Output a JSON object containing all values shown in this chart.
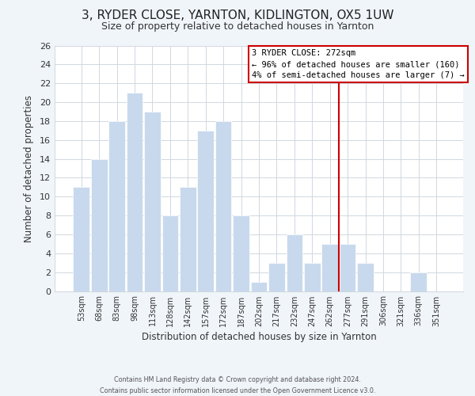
{
  "title": "3, RYDER CLOSE, YARNTON, KIDLINGTON, OX5 1UW",
  "subtitle": "Size of property relative to detached houses in Yarnton",
  "xlabel": "Distribution of detached houses by size in Yarnton",
  "ylabel": "Number of detached properties",
  "footer_line1": "Contains HM Land Registry data © Crown copyright and database right 2024.",
  "footer_line2": "Contains public sector information licensed under the Open Government Licence v3.0.",
  "categories": [
    "53sqm",
    "68sqm",
    "83sqm",
    "98sqm",
    "113sqm",
    "128sqm",
    "142sqm",
    "157sqm",
    "172sqm",
    "187sqm",
    "202sqm",
    "217sqm",
    "232sqm",
    "247sqm",
    "262sqm",
    "277sqm",
    "291sqm",
    "306sqm",
    "321sqm",
    "336sqm",
    "351sqm"
  ],
  "values": [
    11,
    14,
    18,
    21,
    19,
    8,
    11,
    17,
    18,
    8,
    1,
    3,
    6,
    3,
    5,
    5,
    3,
    0,
    0,
    2,
    0
  ],
  "bar_color": "#c8d9ed",
  "bar_edge_color": "#ffffff",
  "reference_line_color": "#cc0000",
  "annotation_box_text_line1": "3 RYDER CLOSE: 272sqm",
  "annotation_box_text_line2": "← 96% of detached houses are smaller (160)",
  "annotation_box_text_line3": "4% of semi-detached houses are larger (7) →",
  "annotation_box_edge_color": "#cc0000",
  "annotation_box_bg_color": "#ffffff",
  "ylim": [
    0,
    26
  ],
  "yticks": [
    0,
    2,
    4,
    6,
    8,
    10,
    12,
    14,
    16,
    18,
    20,
    22,
    24,
    26
  ],
  "grid_color": "#d0d8e0",
  "plot_bg_color": "#ffffff",
  "fig_bg_color": "#f0f5fa",
  "title_fontsize": 11,
  "subtitle_fontsize": 9
}
